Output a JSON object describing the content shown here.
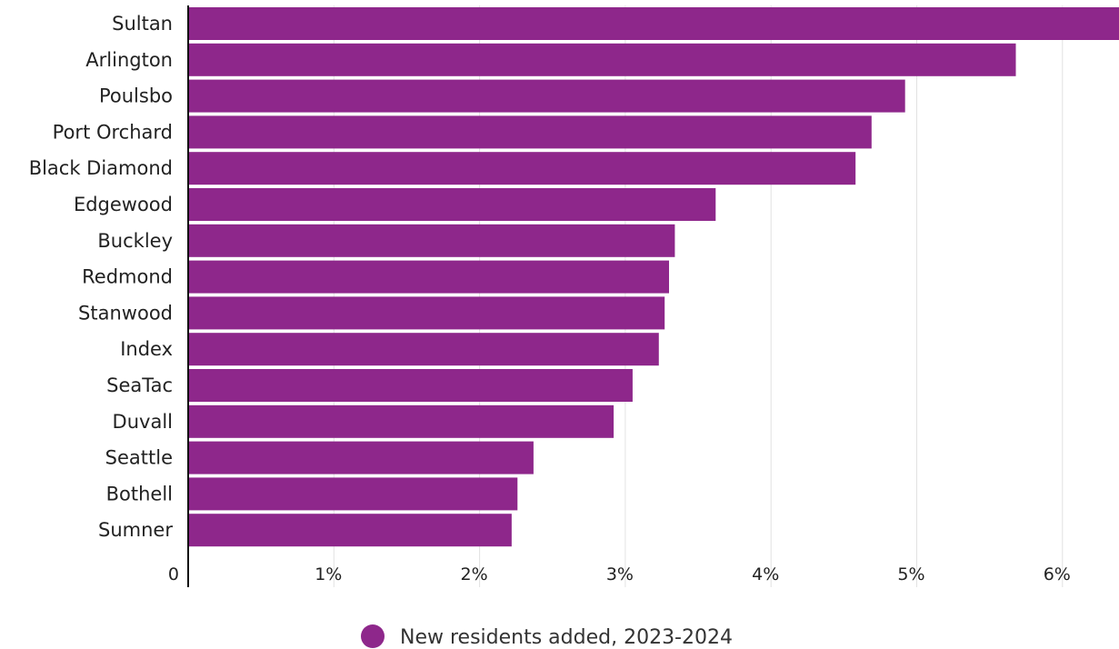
{
  "chart_data": {
    "type": "bar",
    "orientation": "horizontal",
    "categories": [
      "Sultan",
      "Arlington",
      "Poulsbo",
      "Port Orchard",
      "Black Diamond",
      "Edgewood",
      "Buckley",
      "Redmond",
      "Stanwood",
      "Index",
      "SeaTac",
      "Duvall",
      "Seattle",
      "Bothell",
      "Sumner"
    ],
    "series": [
      {
        "name": "New residents added, 2023-2024",
        "color": "#8e278b",
        "values": [
          6.52,
          5.68,
          4.92,
          4.69,
          4.58,
          3.62,
          3.34,
          3.3,
          3.27,
          3.23,
          3.05,
          2.92,
          2.37,
          2.26,
          2.22
        ]
      }
    ],
    "x_ticks": [
      "0",
      "1%",
      "2%",
      "3%",
      "4%",
      "5%",
      "6%"
    ],
    "xlim": [
      0,
      6.4
    ],
    "grid": "vertical",
    "legend_position": "bottom-center"
  }
}
